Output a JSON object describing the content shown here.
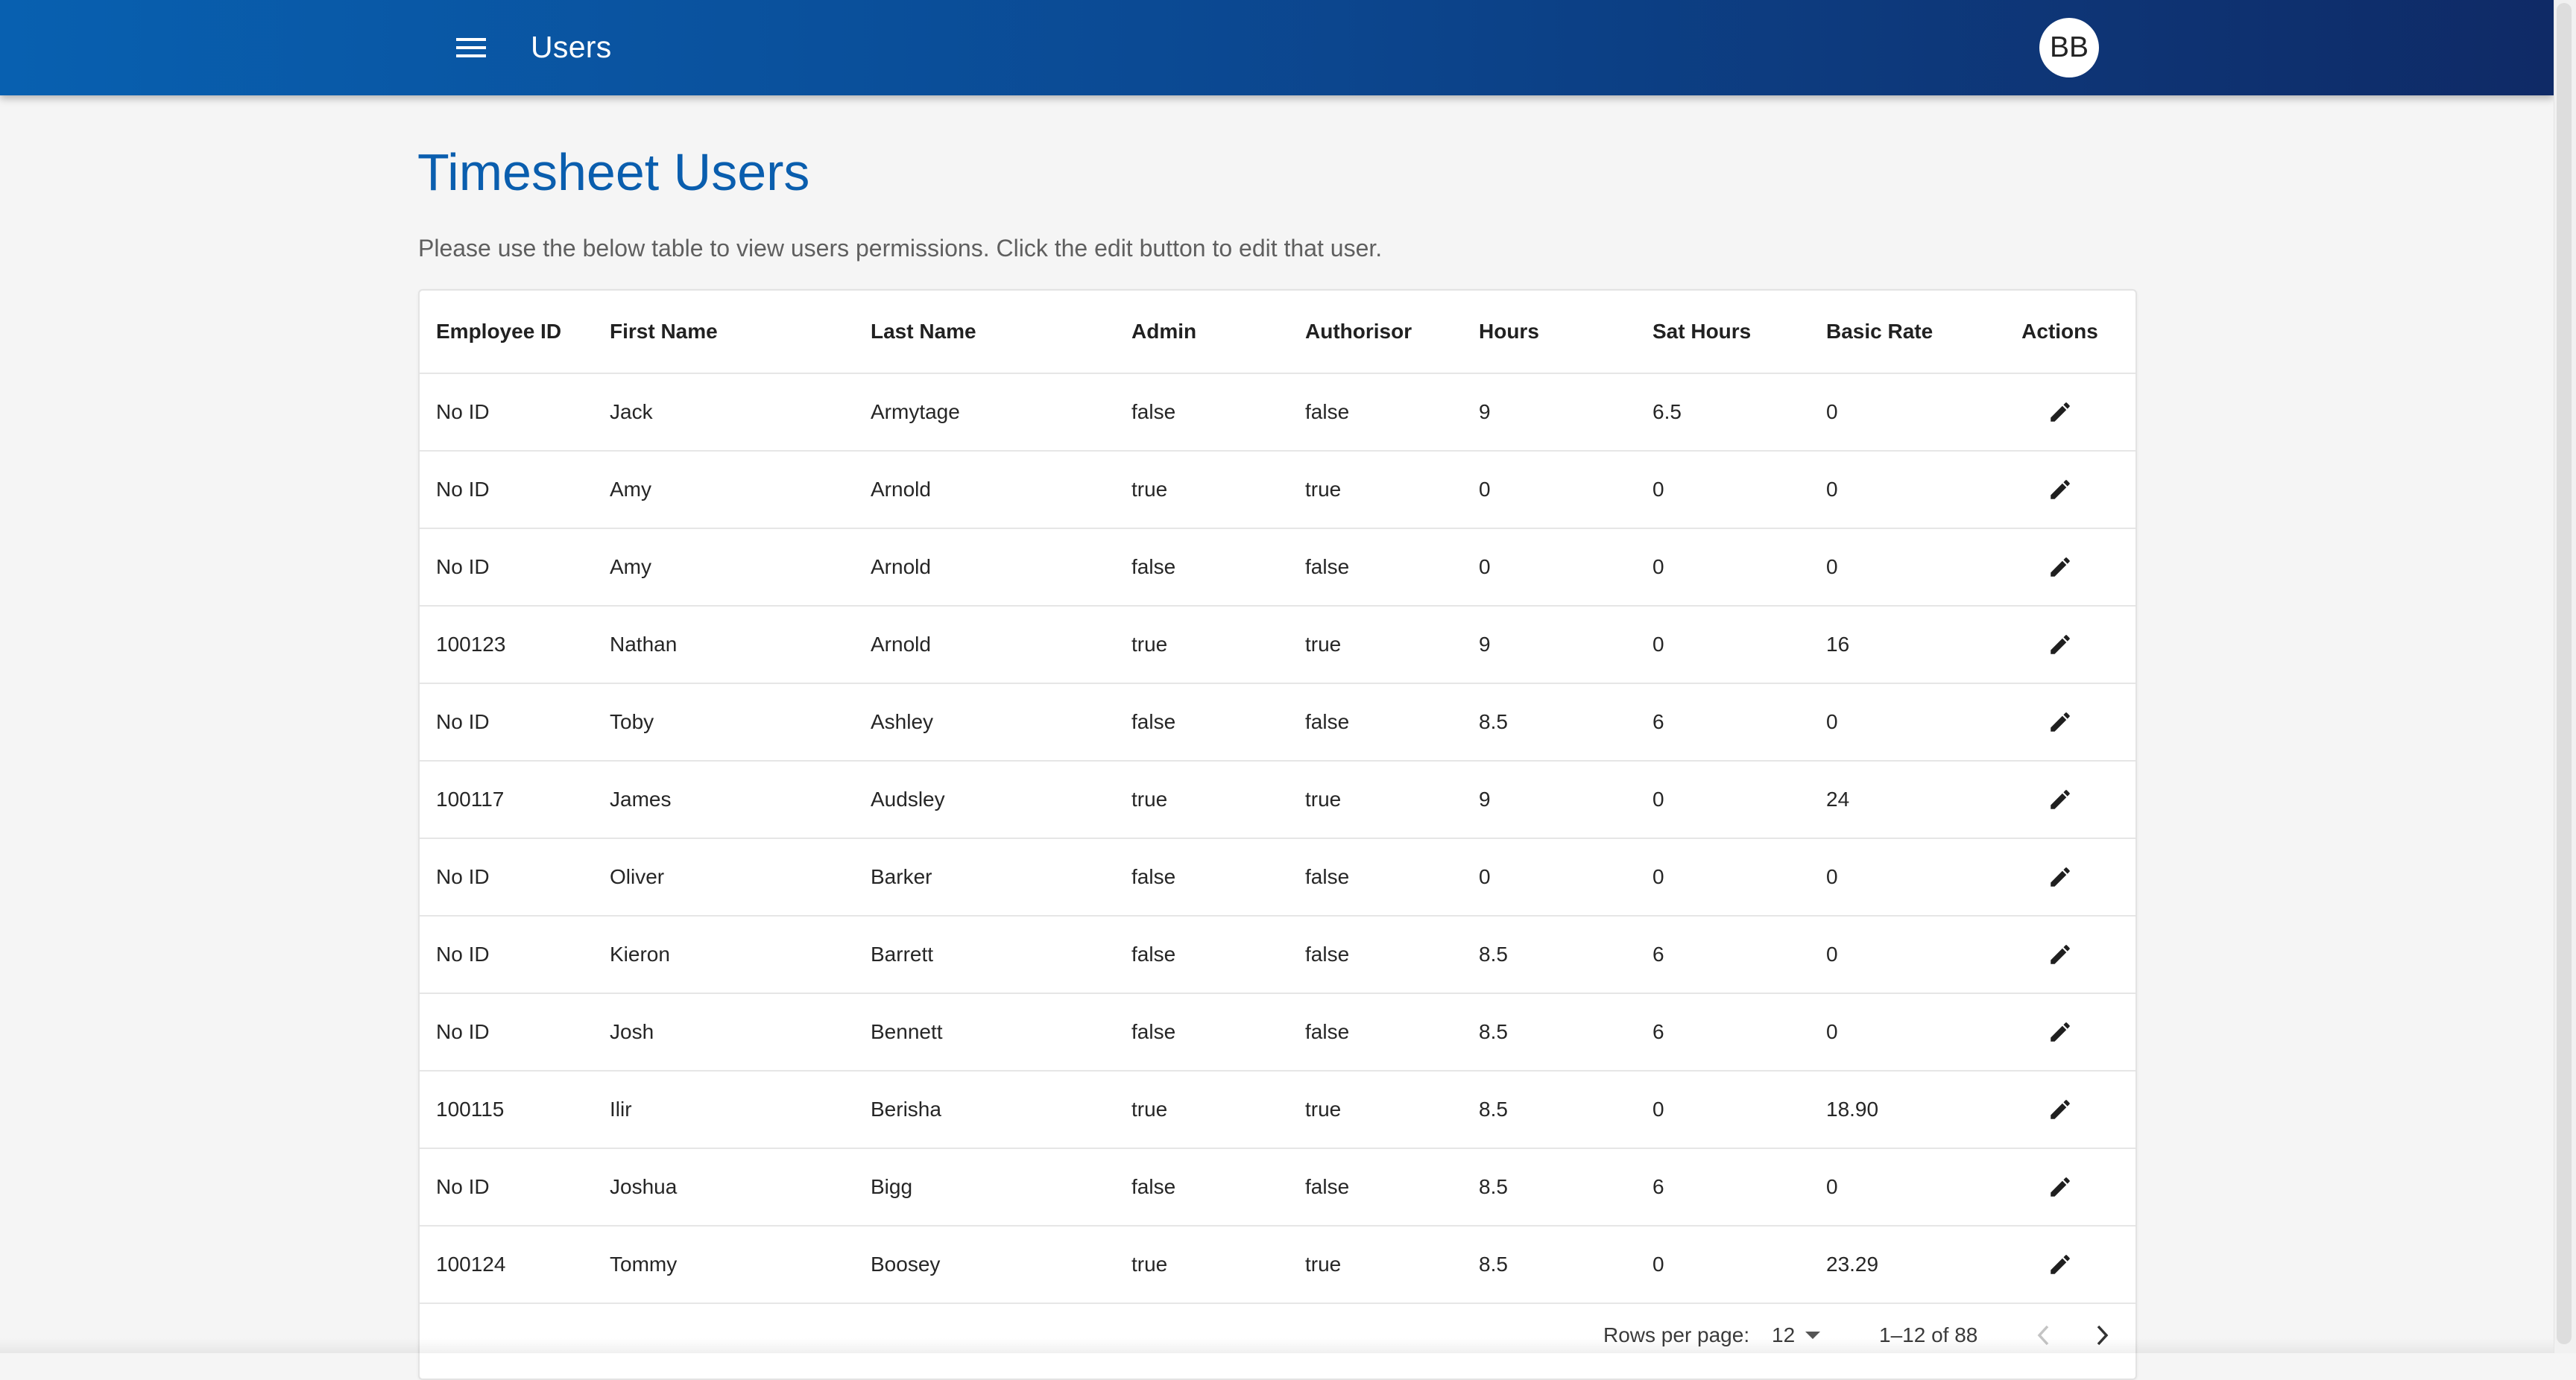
{
  "appbar": {
    "title": "Users",
    "avatar_initials": "BB",
    "menu_icon": "hamburger-menu-icon",
    "background_start": "#0860b0",
    "background_end": "#0f2a66"
  },
  "page": {
    "title": "Timesheet Users",
    "description": "Please use the below table to view users permissions. Click the edit button to edit that user.",
    "title_color": "#0a5eae"
  },
  "table": {
    "columns": [
      "Employee ID",
      "First Name",
      "Last Name",
      "Admin",
      "Authorisor",
      "Hours",
      "Sat Hours",
      "Basic Rate",
      "Actions"
    ],
    "action_icon": "pencil-edit-icon",
    "rows": [
      {
        "employee_id": "No ID",
        "first_name": "Jack",
        "last_name": "Armytage",
        "admin": "false",
        "authorisor": "false",
        "hours": "9",
        "sat_hours": "6.5",
        "basic_rate": "0"
      },
      {
        "employee_id": "No ID",
        "first_name": "Amy",
        "last_name": "Arnold",
        "admin": "true",
        "authorisor": "true",
        "hours": "0",
        "sat_hours": "0",
        "basic_rate": "0"
      },
      {
        "employee_id": "No ID",
        "first_name": "Amy",
        "last_name": "Arnold",
        "admin": "false",
        "authorisor": "false",
        "hours": "0",
        "sat_hours": "0",
        "basic_rate": "0"
      },
      {
        "employee_id": "100123",
        "first_name": "Nathan",
        "last_name": "Arnold",
        "admin": "true",
        "authorisor": "true",
        "hours": "9",
        "sat_hours": "0",
        "basic_rate": "16"
      },
      {
        "employee_id": "No ID",
        "first_name": "Toby",
        "last_name": "Ashley",
        "admin": "false",
        "authorisor": "false",
        "hours": "8.5",
        "sat_hours": "6",
        "basic_rate": "0"
      },
      {
        "employee_id": "100117",
        "first_name": "James",
        "last_name": "Audsley",
        "admin": "true",
        "authorisor": "true",
        "hours": "9",
        "sat_hours": "0",
        "basic_rate": "24"
      },
      {
        "employee_id": "No ID",
        "first_name": "Oliver",
        "last_name": "Barker",
        "admin": "false",
        "authorisor": "false",
        "hours": "0",
        "sat_hours": "0",
        "basic_rate": "0"
      },
      {
        "employee_id": "No ID",
        "first_name": "Kieron",
        "last_name": "Barrett",
        "admin": "false",
        "authorisor": "false",
        "hours": "8.5",
        "sat_hours": "6",
        "basic_rate": "0"
      },
      {
        "employee_id": "No ID",
        "first_name": "Josh",
        "last_name": "Bennett",
        "admin": "false",
        "authorisor": "false",
        "hours": "8.5",
        "sat_hours": "6",
        "basic_rate": "0"
      },
      {
        "employee_id": "100115",
        "first_name": "Ilir",
        "last_name": "Berisha",
        "admin": "true",
        "authorisor": "true",
        "hours": "8.5",
        "sat_hours": "0",
        "basic_rate": "18.90"
      },
      {
        "employee_id": "No ID",
        "first_name": "Joshua",
        "last_name": "Bigg",
        "admin": "false",
        "authorisor": "false",
        "hours": "8.5",
        "sat_hours": "6",
        "basic_rate": "0"
      },
      {
        "employee_id": "100124",
        "first_name": "Tommy",
        "last_name": "Boosey",
        "admin": "true",
        "authorisor": "true",
        "hours": "8.5",
        "sat_hours": "0",
        "basic_rate": "23.29"
      }
    ]
  },
  "pagination": {
    "rows_per_page_label": "Rows per page:",
    "rows_per_page_value": "12",
    "range_text": "1–12 of 88",
    "prev_icon": "chevron-left-icon",
    "next_icon": "chevron-right-icon",
    "prev_disabled_color": "#c4c4c4",
    "next_color": "#333333"
  }
}
